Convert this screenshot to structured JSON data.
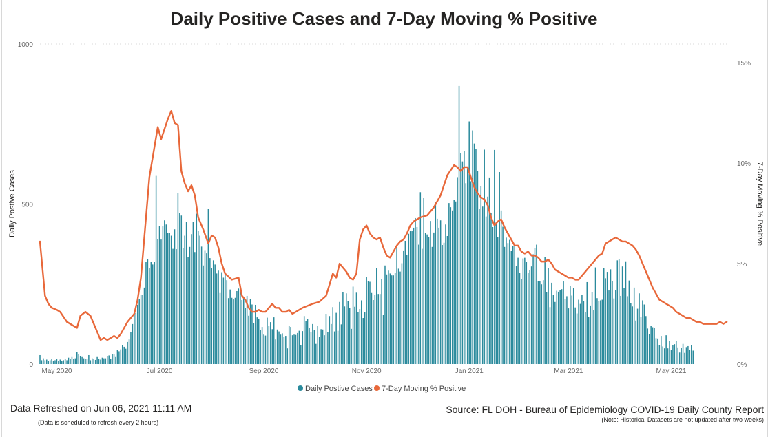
{
  "chart_data": {
    "type": "bar+line",
    "title": "Daily Positive Cases and 7-Day Moving % Positive",
    "ylabel_left": "Daily Postive Cases",
    "ylabel_right": "7-Day Moving % Positive",
    "y_left_range": [
      0,
      1000
    ],
    "y_left_ticks": [
      "0",
      "500",
      "1000"
    ],
    "y_right_range": [
      0,
      15.93
    ],
    "y_right_ticks": [
      "0%",
      "5%",
      "10%",
      "15%"
    ],
    "x_start": "2020-04-21",
    "x_end": "2021-06-05",
    "x_ticks": [
      {
        "label": "May 2020",
        "day": 10
      },
      {
        "label": "Jul 2020",
        "day": 71
      },
      {
        "label": "Sep 2020",
        "day": 133
      },
      {
        "label": "Nov 2020",
        "day": 194
      },
      {
        "label": "Jan 2021",
        "day": 255
      },
      {
        "label": "Mar 2021",
        "day": 314
      },
      {
        "label": "May 2021",
        "day": 375
      }
    ],
    "legend": [
      {
        "name": "Daily Postive Cases",
        "color": "#2a8a9c"
      },
      {
        "name": "7-Day Moving  % Positive",
        "color": "#e8683a"
      }
    ],
    "legend_position": "bottom",
    "series": [
      {
        "name": "Daily Postive Cases",
        "type": "bar",
        "color": "#2a8a9c",
        "x_day_step": 1,
        "values": [
          28,
          12,
          18,
          12,
          14,
          10,
          12,
          15,
          10,
          12,
          15,
          10,
          14,
          10,
          12,
          16,
          12,
          20,
          15,
          22,
          16,
          18,
          38,
          30,
          25,
          22,
          18,
          16,
          15,
          28,
          12,
          18,
          15,
          13,
          22,
          15,
          14,
          20,
          18,
          18,
          24,
          27,
          17,
          31,
          30,
          22,
          44,
          40,
          46,
          60,
          54,
          48,
          69,
          77,
          101,
          125,
          160,
          159,
          185,
          204,
          217,
          216,
          239,
          320,
          328,
          300,
          320,
          311,
          319,
          588,
          390,
          432,
          389,
          430,
          449,
          436,
          410,
          410,
          401,
          360,
          421,
          359,
          535,
          471,
          464,
          362,
          401,
          443,
          334,
          366,
          406,
          443,
          350,
          470,
          416,
          401,
          367,
          308,
          356,
          346,
          485,
          331,
          301,
          324,
          311,
          283,
          292,
          222,
          287,
          270,
          280,
          262,
          206,
          233,
          207,
          202,
          207,
          228,
          236,
          225,
          200,
          206,
          175,
          213,
          151,
          203,
          186,
          128,
          185,
          146,
          142,
          107,
          116,
          92,
          89,
          145,
          120,
          131,
          109,
          146,
          77,
          108,
          102,
          92,
          96,
          85,
          88,
          49,
          119,
          116,
          90,
          92,
          91,
          97,
          104,
          60,
          103,
          150,
          135,
          140,
          114,
          101,
          125,
          107,
          63,
          120,
          86,
          109,
          108,
          90,
          157,
          100,
          150,
          125,
          178,
          102,
          160,
          104,
          194,
          124,
          225,
          180,
          221,
          197,
          175,
          110,
          242,
          179,
          223,
          163,
          172,
          199,
          144,
          162,
          273,
          260,
          257,
          222,
          200,
          217,
          301,
          219,
          219,
          265,
          153,
          308,
          280,
          292,
          283,
          277,
          277,
          284,
          365,
          298,
          289,
          315,
          355,
          385,
          342,
          407,
          415,
          415,
          426,
          456,
          428,
          373,
          537,
          360,
          520,
          410,
          405,
          396,
          447,
          366,
          411,
          505,
          454,
          426,
          449,
          372,
          379,
          436,
          400,
          503,
          490,
          480,
          513,
          508,
          584,
          869,
          660,
          633,
          665,
          565,
          609,
          758,
          571,
          730,
          689,
          673,
          603,
          486,
          555,
          492,
          670,
          461,
          523,
          583,
          473,
          428,
          669,
          445,
          397,
          600,
          480,
          429,
          366,
          395,
          378,
          388,
          354,
          368,
          376,
          307,
          332,
          286,
          265,
          330,
          332,
          320,
          285,
          294,
          305,
          343,
          363,
          373,
          260,
          260,
          249,
          262,
          334,
          224,
          300,
          178,
          254,
          217,
          194,
          229,
          226,
          232,
          234,
          258,
          204,
          212,
          174,
          243,
          214,
          237,
          177,
          158,
          201,
          188,
          217,
          197,
          162,
          256,
          148,
          183,
          224,
          168,
          302,
          206,
          196,
          199,
          201,
          300,
          268,
          288,
          230,
          296,
          259,
          205,
          231,
          324,
          328,
          213,
          305,
          237,
          321,
          212,
          261,
          190,
          180,
          239,
          136,
          173,
          221,
          148,
          199,
          186,
          150,
          111,
          93,
          119,
          115,
          114,
          81,
          80,
          60,
          88,
          55,
          49,
          90,
          49,
          72,
          44,
          60,
          62,
          72,
          52,
          36,
          50,
          63,
          35,
          53,
          56,
          45,
          60,
          42
        ]
      },
      {
        "name": "7-Day Moving  % Positive",
        "type": "line",
        "color": "#e8683a",
        "x_days": [
          0,
          3,
          5,
          7,
          10,
          12,
          16,
          20,
          22,
          24,
          27,
          30,
          36,
          38,
          40,
          42,
          44,
          46,
          48,
          50,
          52,
          54,
          56,
          58,
          60,
          62,
          65,
          68,
          70,
          72,
          74,
          76,
          78,
          80,
          82,
          84,
          86,
          88,
          90,
          92,
          94,
          97,
          100,
          102,
          104,
          106,
          108,
          110,
          114,
          118,
          120,
          122,
          124,
          126,
          128,
          130,
          132,
          134,
          136,
          138,
          140,
          142,
          144,
          146,
          148,
          150,
          152,
          156,
          162,
          166,
          170,
          174,
          176,
          178,
          180,
          182,
          184,
          186,
          188,
          190,
          192,
          194,
          196,
          198,
          200,
          202,
          204,
          206,
          208,
          210,
          212,
          214,
          216,
          218,
          220,
          222,
          226,
          230,
          234,
          238,
          242,
          246,
          248,
          250,
          252,
          254,
          256,
          258,
          260,
          262,
          264,
          266,
          268,
          270,
          272,
          274,
          276,
          278,
          280,
          282,
          284,
          286,
          288,
          290,
          292,
          294,
          296,
          298,
          300,
          302,
          304,
          306,
          308,
          310,
          312,
          314,
          316,
          318,
          320,
          322,
          324,
          326,
          328,
          330,
          332,
          334,
          336,
          338,
          340,
          342,
          344,
          346,
          348,
          350,
          352,
          354,
          356,
          358,
          360,
          362,
          364,
          366,
          368,
          370,
          372,
          374,
          376,
          378,
          380,
          382,
          384,
          386,
          388,
          390,
          392,
          394,
          396,
          398,
          400,
          402,
          404,
          406,
          408
        ],
        "values": [
          6.1,
          3.4,
          3.0,
          2.8,
          2.7,
          2.6,
          2.1,
          1.9,
          1.8,
          2.4,
          2.6,
          2.4,
          1.2,
          1.3,
          1.2,
          1.3,
          1.4,
          1.3,
          1.5,
          1.8,
          2.1,
          2.3,
          2.5,
          3.2,
          4.3,
          6.3,
          9.3,
          10.8,
          11.8,
          11.2,
          11.7,
          12.2,
          12.6,
          12.0,
          11.9,
          9.6,
          9.0,
          8.6,
          8.9,
          8.4,
          7.3,
          6.7,
          6.0,
          6.4,
          6.3,
          5.8,
          5.0,
          4.5,
          4.2,
          4.3,
          3.4,
          3.2,
          2.8,
          2.6,
          2.6,
          2.7,
          2.6,
          2.6,
          2.8,
          3.0,
          2.8,
          2.8,
          2.6,
          2.6,
          2.7,
          2.5,
          2.6,
          2.8,
          3.0,
          3.1,
          3.4,
          4.5,
          4.3,
          5.0,
          4.8,
          4.6,
          4.3,
          4.2,
          4.5,
          6.2,
          6.7,
          6.9,
          6.5,
          6.3,
          6.2,
          6.3,
          5.8,
          5.4,
          5.3,
          5.6,
          5.9,
          6.1,
          6.2,
          6.5,
          6.9,
          7.1,
          7.3,
          7.4,
          7.8,
          8.4,
          9.4,
          9.9,
          9.8,
          9.6,
          9.8,
          9.8,
          9.3,
          8.8,
          8.5,
          8.3,
          8.2,
          7.9,
          7.3,
          6.9,
          7.1,
          7.2,
          6.8,
          6.5,
          6.2,
          5.9,
          5.9,
          5.6,
          5.5,
          5.6,
          5.4,
          5.4,
          5.3,
          5.1,
          5.1,
          5.2,
          5.0,
          4.7,
          4.6,
          4.5,
          4.4,
          4.3,
          4.3,
          4.2,
          4.2,
          4.4,
          4.6,
          4.8,
          5.0,
          5.2,
          5.4,
          5.5,
          6.0,
          6.1,
          6.2,
          6.3,
          6.2,
          6.1,
          6.1,
          6.0,
          5.9,
          5.7,
          5.4,
          5.0,
          4.6,
          4.2,
          3.8,
          3.5,
          3.2,
          3.1,
          3.0,
          2.9,
          2.8,
          2.6,
          2.5,
          2.4,
          2.3,
          2.3,
          2.2,
          2.1,
          2.1,
          2.0,
          2.0,
          2.0,
          2.0,
          2.0,
          2.1,
          2.0,
          2.1
        ]
      }
    ]
  },
  "footer": {
    "refreshed": "Data Refreshed on Jun 06, 2021 11:11 AM",
    "refresh_note": "(Data is scheduled to refresh every 2 hours)",
    "source": "Source: FL DOH - Bureau of Epidemiology COVID-19 Daily County Report",
    "source_note": "(Note: Historical Datasets are not updated after two weeks)"
  }
}
